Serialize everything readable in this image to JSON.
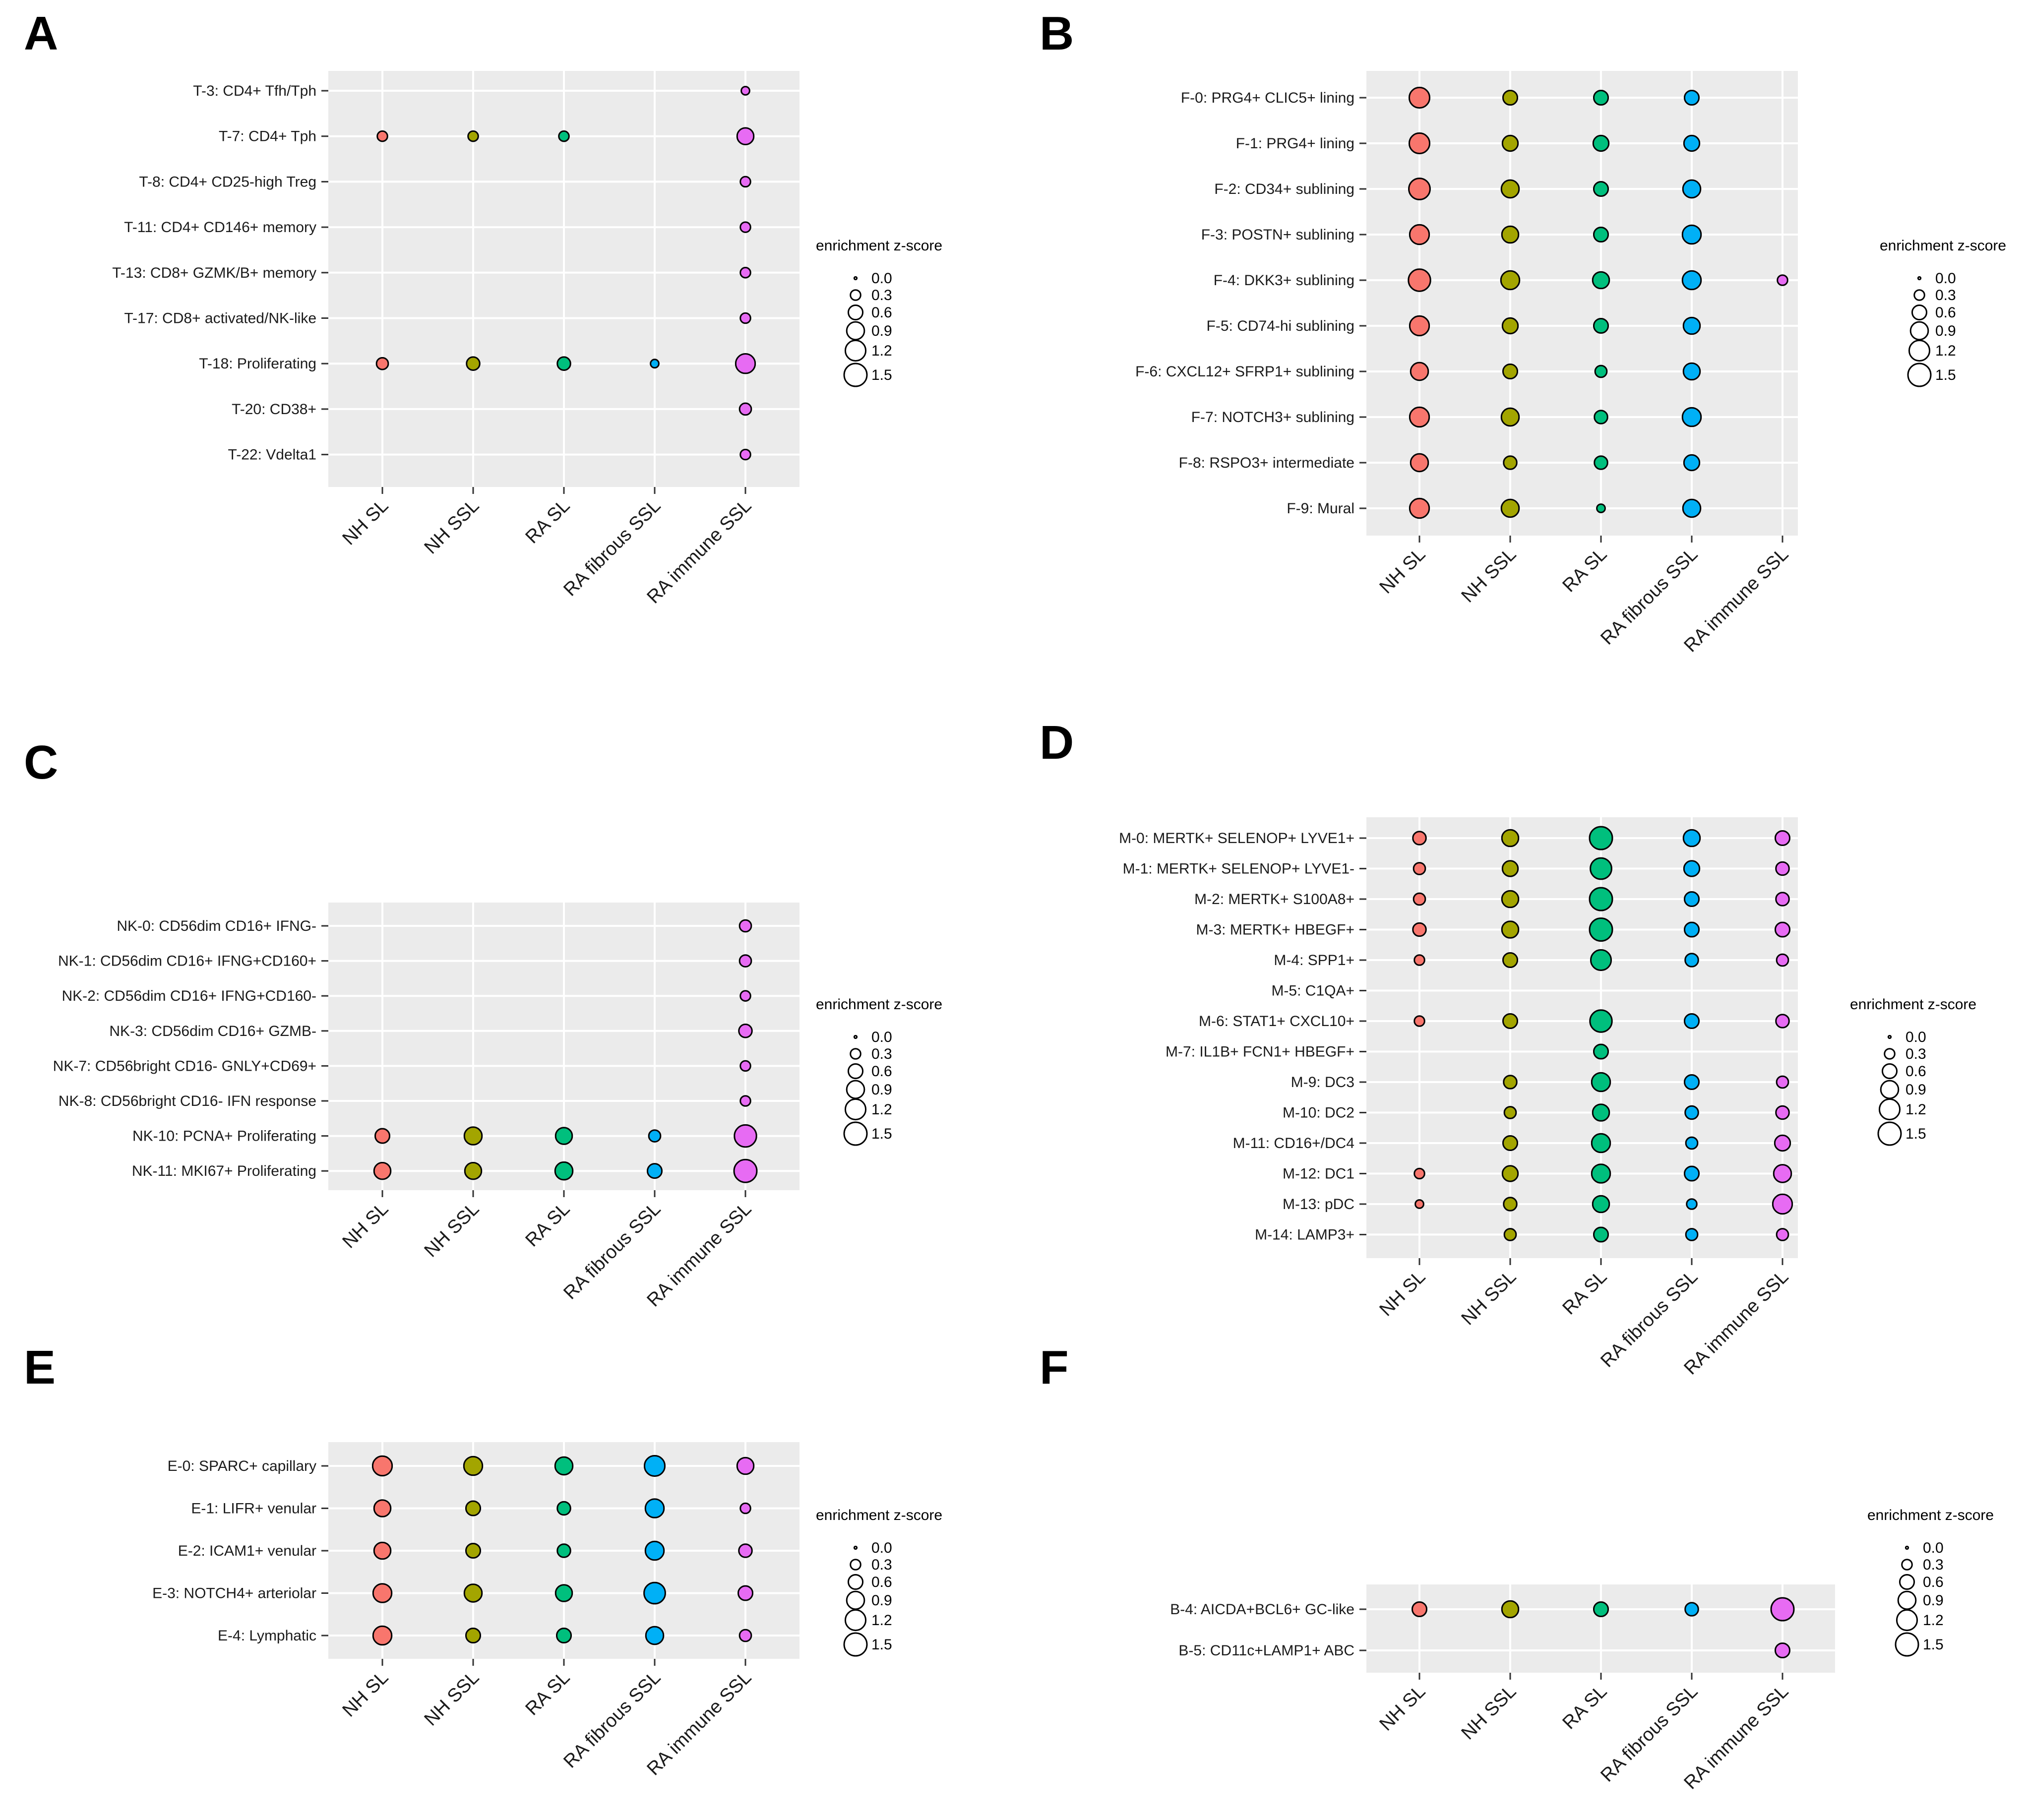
{
  "colors": {
    "NH SL": "#F8766D",
    "NH SSL": "#A3A500",
    "RA SL": "#00BF7D",
    "RA fibrous SSL": "#00B0F6",
    "RA immune SSL": "#E76BF3",
    "panel_bg": "#EBEBEB",
    "grid": "#FFFFFF"
  },
  "legend": {
    "title": "enrichment z-score",
    "values": [
      0.0,
      0.3,
      0.6,
      0.9,
      1.2,
      1.5
    ],
    "labels": [
      "0.0",
      "0.3",
      "0.6",
      "0.9",
      "1.2",
      "1.5"
    ]
  },
  "chart_data": [
    {
      "panel": "A",
      "type": "scatter",
      "categories": [
        "NH SL",
        "NH SSL",
        "RA SL",
        "RA fibrous SSL",
        "RA immune SSL"
      ],
      "rows": [
        "T-3: CD4+ Tfh/Tph",
        "T-7: CD4+ Tph",
        "T-8: CD4+ CD25-high Treg",
        "T-11: CD4+ CD146+ memory",
        "T-13: CD8+ GZMK/B+ memory",
        "T-17: CD8+ activated/NK-like",
        "T-18: Proliferating",
        "T-20: CD38+",
        "T-22: Vdelta1"
      ],
      "zscores": [
        [
          null,
          null,
          null,
          null,
          0.2
        ],
        [
          0.3,
          0.3,
          0.3,
          null,
          0.8
        ],
        [
          null,
          null,
          null,
          null,
          0.3
        ],
        [
          null,
          null,
          null,
          null,
          0.3
        ],
        [
          null,
          null,
          null,
          null,
          0.3
        ],
        [
          null,
          null,
          null,
          null,
          0.3
        ],
        [
          0.4,
          0.5,
          0.5,
          0.2,
          1.1
        ],
        [
          null,
          null,
          null,
          null,
          0.4
        ],
        [
          null,
          null,
          null,
          null,
          0.3
        ]
      ]
    },
    {
      "panel": "B",
      "type": "scatter",
      "categories": [
        "NH SL",
        "NH SSL",
        "RA SL",
        "RA fibrous SSL",
        "RA immune SSL"
      ],
      "rows": [
        "F-0: PRG4+ CLIC5+ lining",
        "F-1: PRG4+ lining",
        "F-2: CD34+ sublining",
        "F-3: POSTN+ sublining",
        "F-4: DKK3+ sublining",
        "F-5: CD74-hi sublining",
        "F-6: CXCL12+ SFRP1+ sublining",
        "F-7: NOTCH3+ sublining",
        "F-8: RSPO3+ intermediate",
        "F-9: Mural"
      ],
      "zscores": [
        [
          1.2,
          0.6,
          0.6,
          0.6,
          null
        ],
        [
          1.2,
          0.7,
          0.7,
          0.7,
          null
        ],
        [
          1.3,
          0.9,
          0.6,
          0.9,
          null
        ],
        [
          1.1,
          0.8,
          0.6,
          1.0,
          null
        ],
        [
          1.4,
          1.0,
          0.8,
          1.0,
          0.3
        ],
        [
          1.1,
          0.7,
          0.6,
          0.8,
          null
        ],
        [
          0.9,
          0.6,
          0.4,
          0.8,
          null
        ],
        [
          1.1,
          0.9,
          0.5,
          1.0,
          null
        ],
        [
          0.9,
          0.5,
          0.5,
          0.7,
          null
        ],
        [
          1.1,
          0.9,
          0.2,
          0.9,
          null
        ]
      ]
    },
    {
      "panel": "C",
      "type": "scatter",
      "categories": [
        "NH SL",
        "NH SSL",
        "RA SL",
        "RA fibrous SSL",
        "RA immune SSL"
      ],
      "rows": [
        "NK-0: CD56dim CD16+ IFNG-",
        "NK-1: CD56dim CD16+ IFNG+CD160+",
        "NK-2: CD56dim CD16+ IFNG+CD160-",
        "NK-3: CD56dim CD16+ GZMB-",
        "NK-7: CD56bright CD16- GNLY+CD69+",
        "NK-8: CD56bright CD16- IFN response",
        "NK-10: PCNA+ Proliferating",
        "NK-11: MKI67+ Proliferating"
      ],
      "zscores": [
        [
          null,
          null,
          null,
          null,
          0.4
        ],
        [
          null,
          null,
          null,
          null,
          0.4
        ],
        [
          null,
          null,
          null,
          null,
          0.3
        ],
        [
          null,
          null,
          null,
          null,
          0.5
        ],
        [
          null,
          null,
          null,
          null,
          0.3
        ],
        [
          null,
          null,
          null,
          null,
          0.3
        ],
        [
          0.6,
          0.9,
          0.8,
          0.4,
          1.4
        ],
        [
          0.8,
          0.8,
          0.9,
          0.6,
          1.5
        ]
      ]
    },
    {
      "panel": "D",
      "type": "scatter",
      "categories": [
        "NH SL",
        "NH SSL",
        "RA SL",
        "RA fibrous SSL",
        "RA immune SSL"
      ],
      "rows": [
        "M-0: MERTK+ SELENOP+ LYVE1+",
        "M-1: MERTK+ SELENOP+ LYVE1-",
        "M-2: MERTK+ S100A8+",
        "M-3: MERTK+ HBEGF+",
        "M-4: SPP1+",
        "M-5: C1QA+",
        "M-6: STAT1+ CXCL10+",
        "M-7: IL1B+ FCN1+ HBEGF+",
        "M-9: DC3",
        "M-10: DC2",
        "M-11: CD16+/DC4",
        "M-12: DC1",
        "M-13: pDC",
        "M-14: LAMP3+"
      ],
      "zscores": [
        [
          0.5,
          0.8,
          1.5,
          0.8,
          0.6
        ],
        [
          0.4,
          0.7,
          1.3,
          0.7,
          0.5
        ],
        [
          0.4,
          0.8,
          1.5,
          0.6,
          0.5
        ],
        [
          0.5,
          0.8,
          1.5,
          0.6,
          0.6
        ],
        [
          0.3,
          0.6,
          1.2,
          0.5,
          0.4
        ],
        [
          null,
          null,
          null,
          null,
          null
        ],
        [
          0.3,
          0.6,
          1.4,
          0.6,
          0.5
        ],
        [
          null,
          null,
          0.6,
          null,
          null
        ],
        [
          null,
          0.5,
          1.0,
          0.6,
          0.4
        ],
        [
          null,
          0.4,
          0.8,
          0.5,
          0.5
        ],
        [
          null,
          0.6,
          1.0,
          0.4,
          0.7
        ],
        [
          0.3,
          0.7,
          1.0,
          0.6,
          0.9
        ],
        [
          0.2,
          0.5,
          0.8,
          0.3,
          1.1
        ],
        [
          null,
          0.4,
          0.6,
          0.4,
          0.4
        ]
      ]
    },
    {
      "panel": "E",
      "type": "scatter",
      "categories": [
        "NH SL",
        "NH SSL",
        "RA SL",
        "RA fibrous SSL",
        "RA immune SSL"
      ],
      "rows": [
        "E-0: SPARC+ capillary",
        "E-1: LIFR+ venular",
        "E-2: ICAM1+ venular",
        "E-3: NOTCH4+ arteriolar",
        "E-4: Lymphatic"
      ],
      "zscores": [
        [
          1.1,
          1.0,
          0.9,
          1.2,
          0.8
        ],
        [
          0.8,
          0.6,
          0.5,
          1.0,
          0.3
        ],
        [
          0.8,
          0.6,
          0.5,
          1.0,
          0.5
        ],
        [
          1.0,
          0.9,
          0.8,
          1.3,
          0.6
        ],
        [
          1.0,
          0.6,
          0.6,
          0.9,
          0.4
        ]
      ]
    },
    {
      "panel": "F",
      "type": "scatter",
      "categories": [
        "NH SL",
        "NH SSL",
        "RA SL",
        "RA fibrous SSL",
        "RA immune SSL"
      ],
      "rows": [
        "B-4: AICDA+BCL6+ GC-like",
        "B-5: CD11c+LAMP1+ ABC"
      ],
      "zscores": [
        [
          0.6,
          0.8,
          0.6,
          0.5,
          1.5
        ],
        [
          null,
          null,
          null,
          null,
          0.6
        ]
      ]
    }
  ]
}
